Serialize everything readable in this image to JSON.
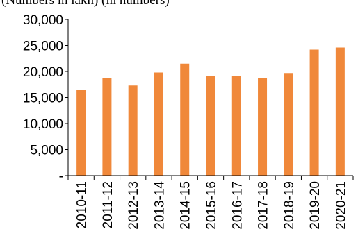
{
  "chart_data": {
    "type": "bar",
    "title": "(Numbers in lakh) (in numbers)",
    "categories": [
      "2010-11",
      "2011-12",
      "2012-13",
      "2013-14",
      "2014-15",
      "2015-16",
      "2016-17",
      "2017-18",
      "2018-19",
      "2019-20",
      "2020-21"
    ],
    "series": [
      {
        "values": [
          16500,
          18700,
          17300,
          19800,
          21500,
          19100,
          19200,
          18800,
          19700,
          24200,
          24600
        ]
      }
    ],
    "ylim": [
      0,
      30000
    ],
    "yticks": [
      0,
      5000,
      10000,
      15000,
      20000,
      25000,
      30000
    ],
    "ytick_labels": [
      "-",
      "5,000",
      "10,000",
      "15,000",
      "20,000",
      "25,000",
      "30,000"
    ],
    "grid": false,
    "colors": {
      "bar": "#F0883A",
      "axis": "#000000"
    }
  }
}
